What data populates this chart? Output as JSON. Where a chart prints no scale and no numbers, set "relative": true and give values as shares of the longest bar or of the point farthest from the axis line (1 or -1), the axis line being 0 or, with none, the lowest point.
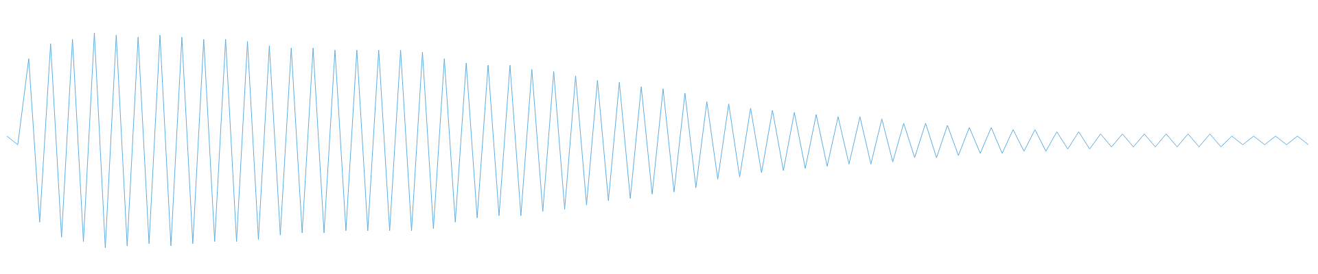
{
  "chart_data": {
    "type": "line",
    "relative": true,
    "categories": [
      null,
      null,
      null,
      null,
      null,
      null,
      null,
      null,
      null,
      null,
      null,
      null,
      null,
      null,
      null,
      null,
      null,
      null,
      null,
      null,
      null,
      null,
      null,
      null,
      null,
      null,
      null,
      null,
      null,
      null,
      null,
      null,
      null,
      null,
      null,
      null,
      null,
      null,
      null,
      null,
      null,
      null,
      null,
      null,
      null,
      null,
      null,
      null,
      null,
      null,
      null,
      null,
      null,
      null,
      null,
      null,
      null,
      null,
      null,
      null,
      null,
      null,
      null,
      null,
      null,
      null,
      null,
      null,
      null,
      null,
      null,
      null,
      null,
      null,
      null,
      null,
      null,
      null,
      null,
      null,
      null,
      null,
      null,
      null,
      null,
      null,
      null,
      null,
      null,
      null,
      null,
      null,
      null,
      null,
      null,
      null,
      null,
      null,
      null,
      null,
      null,
      null,
      null,
      null,
      null,
      null,
      null,
      null,
      null,
      null,
      null,
      null,
      null,
      null,
      null,
      null,
      null,
      null,
      null,
      null
    ],
    "series": [
      {
        "color": "#5dade2",
        "values": [
          0.52,
          0.48,
          0.88,
          0.12,
          0.95,
          0.05,
          0.97,
          0.03,
          1,
          0,
          0.99,
          0.01,
          0.98,
          0.02,
          0.99,
          0.01,
          0.98,
          0.02,
          0.97,
          0.03,
          0.97,
          0.03,
          0.96,
          0.04,
          0.94,
          0.06,
          0.93,
          0.07,
          0.93,
          0.07,
          0.92,
          0.08,
          0.92,
          0.08,
          0.92,
          0.08,
          0.92,
          0.08,
          0.91,
          0.09,
          0.88,
          0.12,
          0.86,
          0.14,
          0.85,
          0.15,
          0.85,
          0.15,
          0.83,
          0.17,
          0.82,
          0.18,
          0.8,
          0.2,
          0.78,
          0.22,
          0.77,
          0.23,
          0.75,
          0.25,
          0.74,
          0.26,
          0.72,
          0.28,
          0.68,
          0.32,
          0.67,
          0.33,
          0.65,
          0.35,
          0.64,
          0.36,
          0.63,
          0.37,
          0.62,
          0.38,
          0.61,
          0.39,
          0.61,
          0.39,
          0.6,
          0.4,
          0.58,
          0.42,
          0.58,
          0.42,
          0.57,
          0.43,
          0.56,
          0.44,
          0.56,
          0.44,
          0.55,
          0.45,
          0.55,
          0.45,
          0.54,
          0.46,
          0.54,
          0.46,
          0.53,
          0.47,
          0.53,
          0.47,
          0.53,
          0.47,
          0.53,
          0.47,
          0.53,
          0.47,
          0.53,
          0.47,
          0.52,
          0.48,
          0.52,
          0.48,
          0.52,
          0.48,
          0.52,
          0.48
        ]
      }
    ]
  }
}
